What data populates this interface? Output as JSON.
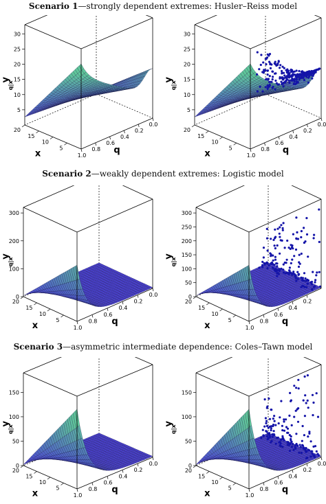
{
  "headings": [
    {
      "label": "Scenario 1",
      "text": "—strongly dependent extremes: Husler–Reiss model"
    },
    {
      "label": "Scenario 2",
      "text": "—weakly dependent extremes: Logistic model"
    },
    {
      "label": "Scenario 3",
      "text": "—asymmetric intermediate dependence: Coles–Tawn model"
    }
  ],
  "colors": {
    "surface_top": "#5fc79a",
    "surface_bottom": "#4b3fd6",
    "mesh": "#1a1a40",
    "points": "#1414a8",
    "box": "#000000"
  },
  "chart_data": [
    {
      "type": "surface",
      "scenario": "Scenario 1",
      "title": "",
      "xlabel": "x",
      "ylabel": "q",
      "zlabel": "y_{q|x}",
      "x_ticks": [
        20,
        15,
        10,
        5
      ],
      "q_ticks": [
        "1.0",
        "0.8",
        "0.6",
        "0.4",
        "0.2",
        "0.0"
      ],
      "z_ticks": [
        5,
        10,
        15,
        20,
        25,
        30
      ],
      "zlim": [
        0,
        33
      ],
      "points": false
    },
    {
      "type": "surface+scatter",
      "scenario": "Scenario 1",
      "title": "",
      "xlabel": "x",
      "ylabel": "q",
      "zlabel": "y_{q|x}",
      "x_ticks": [
        20,
        15,
        10,
        5
      ],
      "q_ticks": [
        "1.0",
        "0.8",
        "0.6",
        "0.4",
        "0.2",
        "0.0"
      ],
      "z_ticks": [
        5,
        10,
        15,
        20,
        25,
        30
      ],
      "zlim": [
        0,
        33
      ],
      "points": true
    },
    {
      "type": "surface",
      "scenario": "Scenario 2",
      "title": "",
      "xlabel": "x",
      "ylabel": "q",
      "zlabel": "y_{q|x}",
      "x_ticks": [
        20,
        15,
        10,
        5
      ],
      "q_ticks": [
        "1.0",
        "0.8",
        "0.6",
        "0.4",
        "0.2",
        "0.0"
      ],
      "z_ticks": [
        0,
        100,
        200,
        300
      ],
      "zlim": [
        0,
        320
      ],
      "points": false
    },
    {
      "type": "surface+scatter",
      "scenario": "Scenario 2",
      "title": "",
      "xlabel": "x",
      "ylabel": "q",
      "zlabel": "y_{q|x}",
      "x_ticks": [
        20,
        15,
        10,
        5
      ],
      "q_ticks": [
        "1.0",
        "0.8",
        "0.6",
        "0.4",
        "0.2"
      ],
      "z_ticks": [
        0,
        50,
        100,
        150,
        200,
        250,
        300
      ],
      "zlim": [
        0,
        320
      ],
      "points": true
    },
    {
      "type": "surface",
      "scenario": "Scenario 3",
      "title": "",
      "xlabel": "x",
      "ylabel": "q",
      "zlabel": "y_{q|x}",
      "x_ticks": [
        20,
        15,
        10,
        5
      ],
      "q_ticks": [
        "1.0",
        "0.8",
        "0.6",
        "0.4",
        "0.2",
        "0.0"
      ],
      "z_ticks": [
        0,
        50,
        100,
        150
      ],
      "zlim": [
        0,
        190
      ],
      "points": false
    },
    {
      "type": "surface+scatter",
      "scenario": "Scenario 3",
      "title": "",
      "xlabel": "x",
      "ylabel": "q",
      "zlabel": "y_{q|x}",
      "x_ticks": [
        20,
        15,
        10,
        5
      ],
      "q_ticks": [
        "1.0",
        "0.8",
        "0.6",
        "0.4",
        "0.2",
        "0.0"
      ],
      "z_ticks": [
        0,
        50,
        100,
        150
      ],
      "zlim": [
        0,
        190
      ],
      "points": true
    }
  ]
}
